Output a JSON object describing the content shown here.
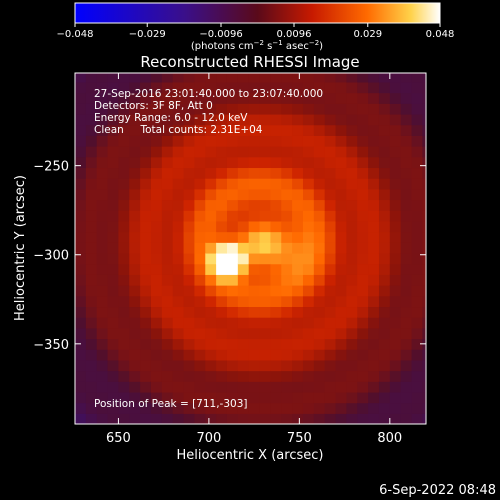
{
  "chart_data": {
    "type": "heatmap",
    "title": "Reconstructed RHESSI Image",
    "xlabel": "Heliocentric X (arcsec)",
    "ylabel": "Heliocentric Y (arcsec)",
    "xlim": [
      626,
      820
    ],
    "ylim": [
      -395,
      -198
    ],
    "xticks": [
      650,
      700,
      750,
      800
    ],
    "xtick_labels": [
      "650",
      "700",
      "750",
      "800"
    ],
    "yticks": [
      -250,
      -300,
      -350
    ],
    "ytick_labels": [
      "−250",
      "−300",
      "−350"
    ],
    "colorbar": {
      "min": -0.048,
      "max": 0.048,
      "ticks": [
        -0.048,
        -0.029,
        -0.0096,
        0.0096,
        0.029,
        0.048
      ],
      "tick_labels": [
        "−0.048",
        "−0.029",
        "−0.0096",
        "0.0096",
        "0.029",
        "0.048"
      ],
      "units_html": "(photons cm<tspan baseline-shift=\"super\" font-size=\"7\">−2</tspan> s<tspan baseline-shift=\"super\" font-size=\"7\">−1</tspan> asec<tspan baseline-shift=\"super\" font-size=\"7\">−2</tspan>)",
      "colormap": "blue-purple-red-yellow-white"
    },
    "annotations": [
      "27-Sep-2016 23:01:40.000 to 23:07:40.000",
      "Detectors: 3F 8F, Att 0",
      "Energy Range: 6.0 - 12.0 keV",
      "Clean     Total counts: 2.31E+04"
    ],
    "peak_label": "Position of Peak = [711,-303]",
    "peak": {
      "x": 711,
      "y": -303,
      "value": 0.048
    },
    "secondary_source": {
      "x": 741,
      "y": -298,
      "value": 0.02
    },
    "grid": false
  },
  "footer": {
    "timestamp": "6-Sep-2022 08:48"
  }
}
